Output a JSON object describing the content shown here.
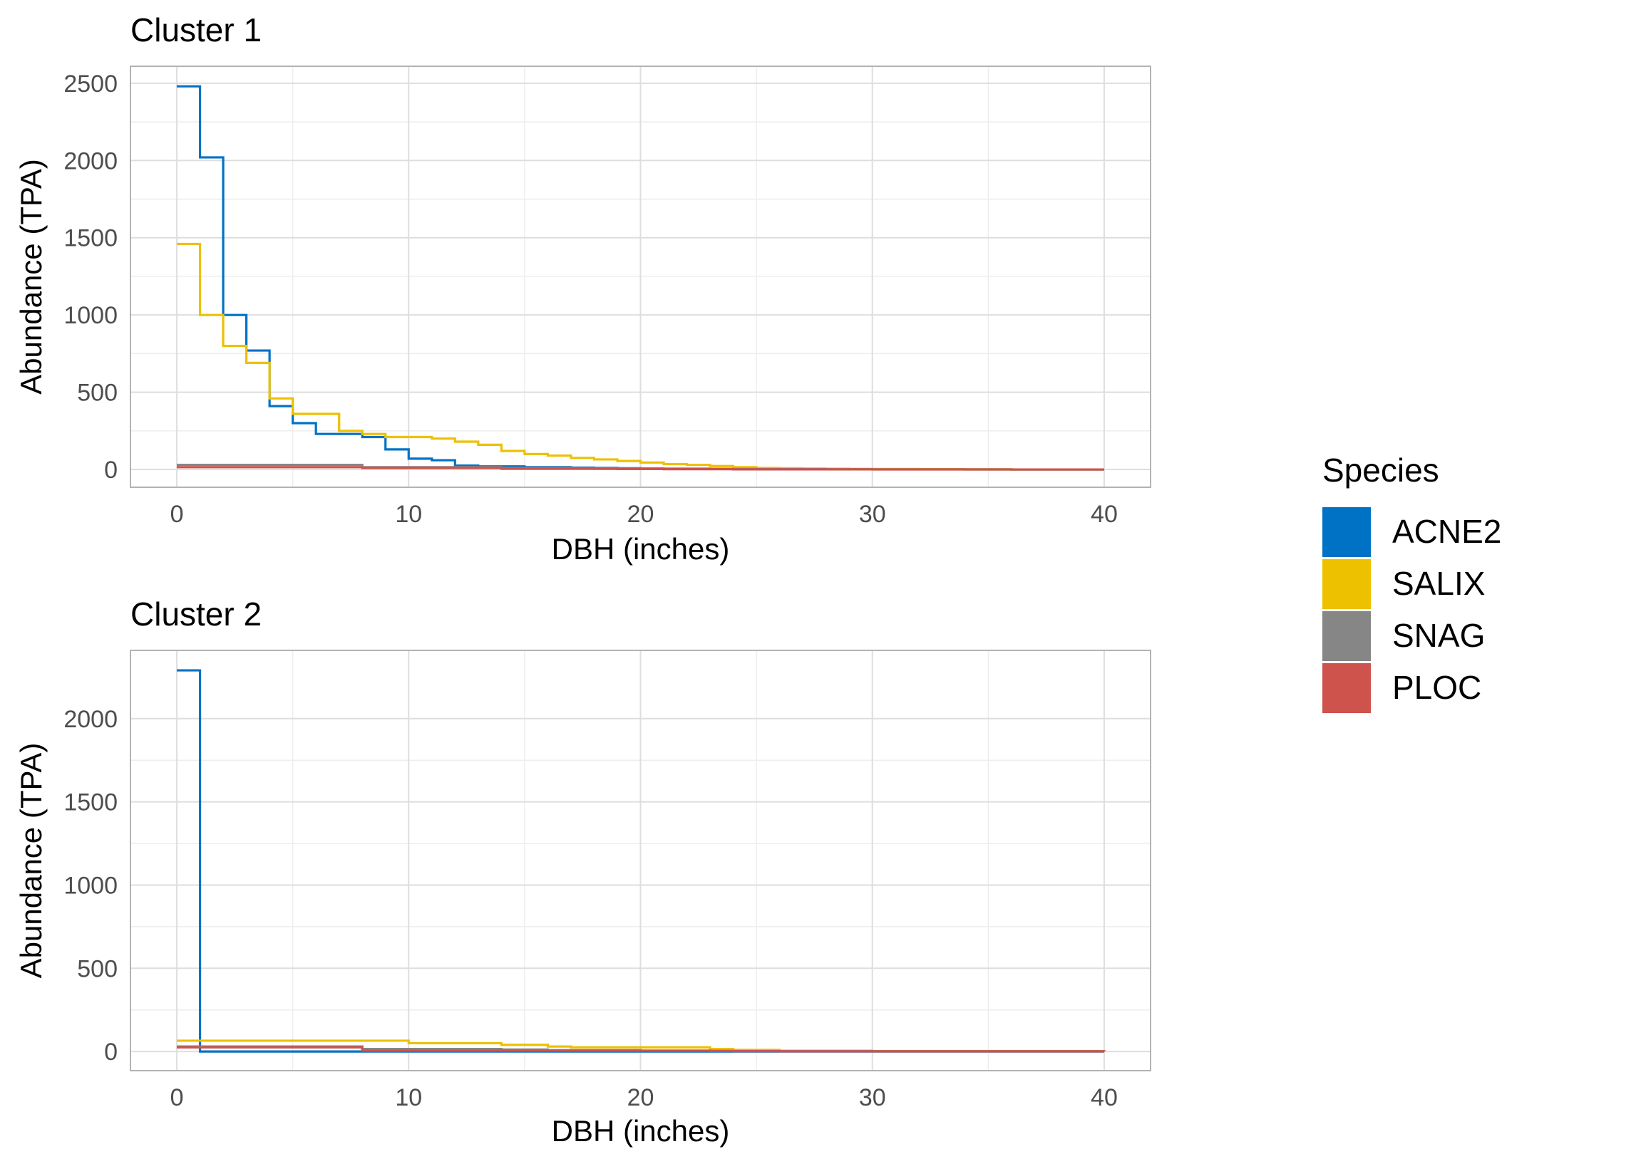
{
  "colors": {
    "ACNE2": "#0072C6",
    "SALIX": "#EDC000",
    "SNAG": "#868686",
    "PLOC": "#CD534C",
    "grid_major": "#DEDEDE",
    "grid_minor": "#EDEDED",
    "panel_border": "#B3B3B3",
    "tick_text": "#4D4D4D"
  },
  "legend": {
    "title": "Species",
    "placement": "right",
    "entries": [
      {
        "key": "ACNE2",
        "label": "ACNE2"
      },
      {
        "key": "SALIX",
        "label": "SALIX"
      },
      {
        "key": "SNAG",
        "label": "SNAG"
      },
      {
        "key": "PLOC",
        "label": "PLOC"
      }
    ]
  },
  "chart_data": [
    {
      "type": "line",
      "title": "Cluster 1",
      "xlabel": "DBH (inches)",
      "ylabel": "Abundance (TPA)",
      "xlim": [
        -2,
        42
      ],
      "ylim": [
        -115,
        2610
      ],
      "xticks": [
        0,
        10,
        20,
        30,
        40
      ],
      "yticks": [
        0,
        500,
        1000,
        1500,
        2000,
        2500
      ],
      "grid": true,
      "series": [
        {
          "name": "ACNE2",
          "x": [
            0,
            1,
            2,
            3,
            4,
            5,
            6,
            7,
            8,
            9,
            10,
            11,
            12,
            13,
            14,
            15,
            16,
            17,
            18,
            19,
            20,
            21,
            22,
            23,
            24,
            25,
            26,
            27,
            28,
            29,
            30,
            32,
            34,
            36,
            38,
            40
          ],
          "y": [
            2480,
            2020,
            1000,
            770,
            410,
            300,
            230,
            230,
            210,
            130,
            70,
            60,
            25,
            20,
            20,
            15,
            15,
            12,
            10,
            8,
            6,
            5,
            5,
            4,
            3,
            3,
            2,
            2,
            2,
            1,
            1,
            1,
            1,
            0,
            0,
            0
          ]
        },
        {
          "name": "SALIX",
          "x": [
            0,
            1,
            2,
            3,
            4,
            5,
            6,
            7,
            8,
            9,
            10,
            11,
            12,
            13,
            14,
            15,
            16,
            17,
            18,
            19,
            20,
            21,
            22,
            23,
            24,
            25,
            26,
            27,
            28,
            29,
            30,
            32,
            34,
            36,
            38,
            40
          ],
          "y": [
            1460,
            1000,
            800,
            690,
            460,
            360,
            360,
            250,
            230,
            210,
            210,
            200,
            180,
            160,
            120,
            100,
            90,
            75,
            65,
            55,
            45,
            35,
            30,
            22,
            15,
            10,
            8,
            6,
            5,
            4,
            3,
            2,
            1,
            0,
            0,
            0
          ]
        },
        {
          "name": "SNAG",
          "x": [
            0,
            1,
            2,
            3,
            4,
            5,
            6,
            7,
            8,
            9,
            10,
            11,
            12,
            13,
            14,
            15,
            16,
            17,
            18,
            19,
            20,
            21,
            22,
            23,
            24,
            25,
            26,
            27,
            28,
            29,
            30,
            32,
            34,
            36,
            38,
            40
          ],
          "y": [
            30,
            30,
            30,
            30,
            30,
            30,
            30,
            30,
            15,
            15,
            15,
            15,
            15,
            15,
            10,
            10,
            10,
            8,
            8,
            6,
            6,
            5,
            4,
            3,
            3,
            2,
            2,
            2,
            1,
            1,
            1,
            1,
            0,
            0,
            0,
            0
          ]
        },
        {
          "name": "PLOC",
          "x": [
            0,
            1,
            2,
            3,
            4,
            5,
            6,
            7,
            8,
            9,
            10,
            11,
            12,
            13,
            14,
            15,
            16,
            17,
            18,
            19,
            20,
            21,
            22,
            23,
            24,
            25,
            26,
            27,
            28,
            29,
            30,
            32,
            34,
            36,
            38,
            40
          ],
          "y": [
            15,
            15,
            15,
            15,
            15,
            15,
            15,
            15,
            10,
            10,
            10,
            10,
            10,
            10,
            5,
            5,
            5,
            5,
            4,
            3,
            3,
            2,
            2,
            2,
            1,
            1,
            1,
            1,
            1,
            1,
            0,
            0,
            0,
            0,
            0,
            0
          ]
        }
      ]
    },
    {
      "type": "line",
      "title": "Cluster 2",
      "xlabel": "DBH (inches)",
      "ylabel": "Abundance (TPA)",
      "xlim": [
        -2,
        42
      ],
      "ylim": [
        -115,
        2410
      ],
      "xticks": [
        0,
        10,
        20,
        30,
        40
      ],
      "yticks": [
        0,
        500,
        1000,
        1500,
        2000
      ],
      "grid": true,
      "series": [
        {
          "name": "ACNE2",
          "x": [
            0,
            1,
            8,
            10,
            14,
            16,
            17,
            20,
            23,
            24,
            26,
            30,
            40
          ],
          "y": [
            2290,
            0,
            0,
            0,
            0,
            0,
            0,
            0,
            0,
            0,
            0,
            0,
            0
          ]
        },
        {
          "name": "SALIX",
          "x": [
            0,
            1,
            8,
            10,
            14,
            16,
            17,
            20,
            23,
            24,
            26,
            30,
            40
          ],
          "y": [
            65,
            65,
            65,
            50,
            40,
            30,
            25,
            25,
            15,
            10,
            5,
            2,
            0
          ]
        },
        {
          "name": "SNAG",
          "x": [
            0,
            1,
            8,
            10,
            14,
            16,
            17,
            20,
            23,
            24,
            26,
            30,
            40
          ],
          "y": [
            30,
            30,
            15,
            15,
            12,
            8,
            8,
            5,
            4,
            3,
            2,
            1,
            0
          ]
        },
        {
          "name": "PLOC",
          "x": [
            0,
            1,
            8,
            10,
            14,
            16,
            17,
            20,
            23,
            24,
            26,
            30,
            40
          ],
          "y": [
            25,
            25,
            5,
            5,
            5,
            5,
            5,
            5,
            3,
            2,
            1,
            1,
            0
          ]
        }
      ]
    }
  ]
}
